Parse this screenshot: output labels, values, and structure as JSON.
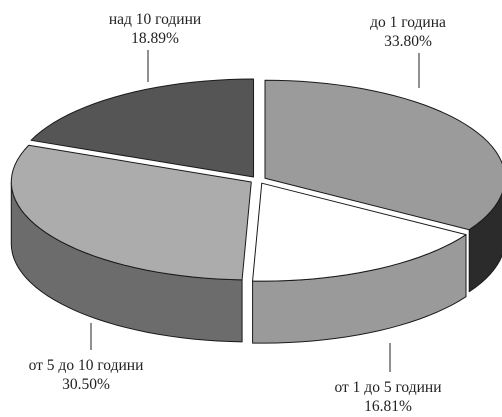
{
  "chart_data": {
    "type": "pie",
    "title": "",
    "style": "3d-exploded",
    "series": [
      {
        "slices": [
          {
            "label": "до 1 година",
            "value": 33.8,
            "value_label": "33.80%",
            "color": "#9b9b9b",
            "side_color": "#2b2b2b"
          },
          {
            "label": "от 1 до 5 години",
            "value": 16.81,
            "value_label": "16.81%",
            "color": "#ffffff",
            "side_color": "#9a9a9a"
          },
          {
            "label": "от 5 до 10 години",
            "value": 30.5,
            "value_label": "30.50%",
            "color": "#acacac",
            "side_color": "#6c6c6c"
          },
          {
            "label": "над 10 години",
            "value": 18.89,
            "value_label": "18.89%",
            "color": "#555555",
            "side_color": "#3a3a3a"
          }
        ]
      }
    ]
  }
}
